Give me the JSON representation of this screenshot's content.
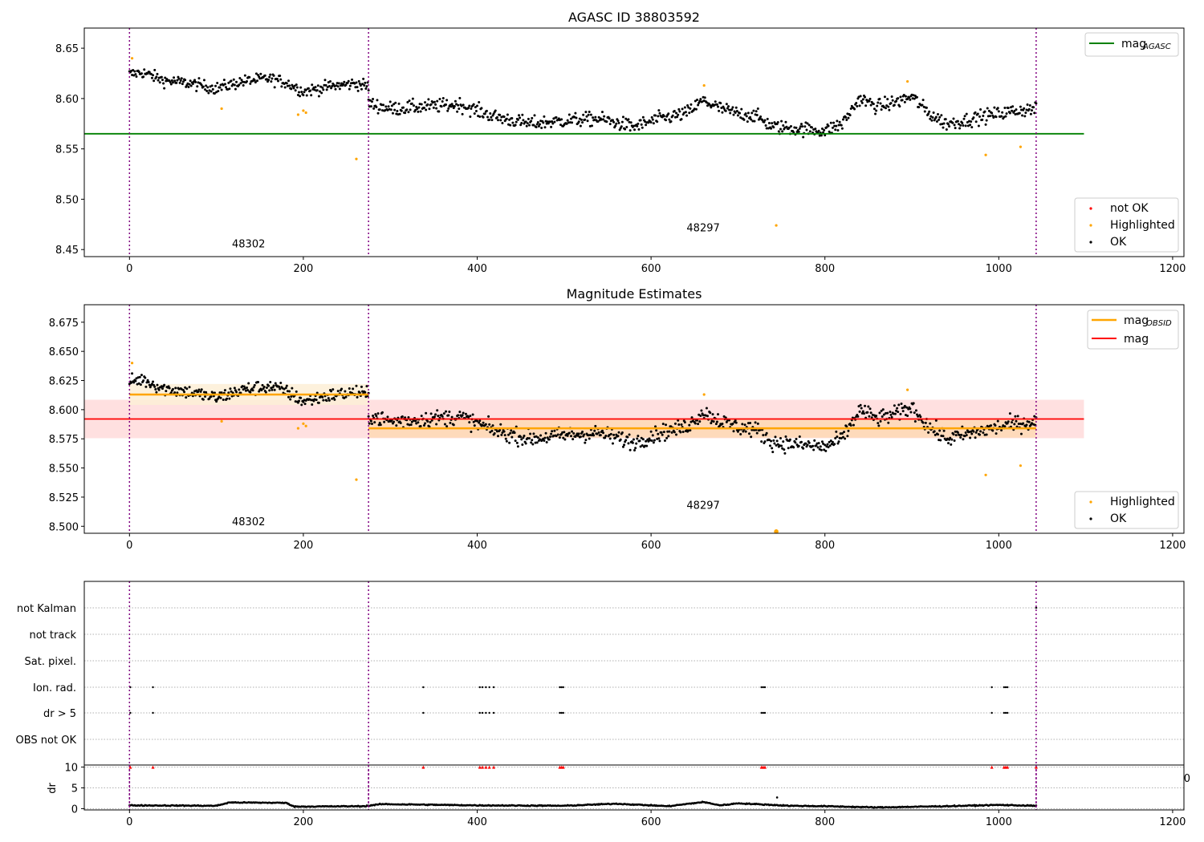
{
  "chart_data": [
    {
      "type": "scatter",
      "title": "AGASC ID 38803592",
      "xlim": [
        -52,
        1213
      ],
      "ylim": [
        8.443,
        8.67
      ],
      "xticks": [
        0,
        200,
        400,
        600,
        800,
        1000,
        1200
      ],
      "yticks": [
        8.45,
        8.5,
        8.55,
        8.6,
        8.65
      ],
      "obsid_boundaries": [
        0,
        275,
        1043
      ],
      "obsid_labels": [
        {
          "text": "48302",
          "x": 137,
          "y": 8.452
        },
        {
          "text": "48297",
          "x": 660,
          "y": 8.468
        }
      ],
      "hlines": [
        {
          "name": "mag_AGASC",
          "y": 8.565,
          "x": [
            -52,
            1098
          ],
          "color": "#008000"
        }
      ],
      "legend_lines": [
        {
          "text": "mag",
          "sub": "AGASC",
          "color": "#008000"
        }
      ],
      "legend_points": [
        {
          "text": "not OK",
          "color": "#ff0000"
        },
        {
          "text": "Highlighted",
          "color": "#ffa500"
        },
        {
          "text": "OK",
          "color": "#000000"
        }
      ],
      "highlighted_points": [
        [
          3,
          8.64
        ],
        [
          106,
          8.59
        ],
        [
          194,
          8.584
        ],
        [
          200,
          8.588
        ],
        [
          203,
          8.586
        ],
        [
          261,
          8.54
        ],
        [
          661,
          8.613
        ],
        [
          744,
          8.474
        ],
        [
          895,
          8.617
        ],
        [
          985,
          8.544
        ],
        [
          1025,
          8.552
        ]
      ],
      "ok_segments": [
        {
          "x": [
            0,
            275
          ],
          "y": [
            [
              0,
              8.624
            ],
            [
              15,
              8.626
            ],
            [
              40,
              8.618
            ],
            [
              70,
              8.615
            ],
            [
              100,
              8.61
            ],
            [
              130,
              8.617
            ],
            [
              160,
              8.62
            ],
            [
              180,
              8.616
            ],
            [
              200,
              8.607
            ],
            [
              230,
              8.612
            ],
            [
              260,
              8.615
            ],
            [
              275,
              8.612
            ]
          ],
          "noise": 0.006
        },
        {
          "x": [
            275,
            1043
          ],
          "y": [
            [
              275,
              8.595
            ],
            [
              300,
              8.59
            ],
            [
              340,
              8.592
            ],
            [
              380,
              8.594
            ],
            [
              420,
              8.582
            ],
            [
              460,
              8.575
            ],
            [
              500,
              8.578
            ],
            [
              540,
              8.58
            ],
            [
              580,
              8.572
            ],
            [
              610,
              8.58
            ],
            [
              640,
              8.585
            ],
            [
              660,
              8.598
            ],
            [
              680,
              8.59
            ],
            [
              700,
              8.585
            ],
            [
              720,
              8.583
            ],
            [
              740,
              8.572
            ],
            [
              770,
              8.57
            ],
            [
              800,
              8.568
            ],
            [
              820,
              8.575
            ],
            [
              840,
              8.6
            ],
            [
              860,
              8.592
            ],
            [
              880,
              8.596
            ],
            [
              900,
              8.602
            ],
            [
              920,
              8.585
            ],
            [
              940,
              8.575
            ],
            [
              960,
              8.578
            ],
            [
              980,
              8.582
            ],
            [
              1000,
              8.585
            ],
            [
              1020,
              8.588
            ],
            [
              1043,
              8.59
            ]
          ],
          "noise": 0.007
        }
      ]
    },
    {
      "type": "scatter",
      "title": "Magnitude Estimates",
      "xlim": [
        -52,
        1213
      ],
      "ylim": [
        8.494,
        8.69
      ],
      "xticks": [
        0,
        200,
        400,
        600,
        800,
        1000,
        1200
      ],
      "yticks": [
        8.5,
        8.525,
        8.55,
        8.575,
        8.6,
        8.625,
        8.65,
        8.675
      ],
      "obsid_boundaries": [
        0,
        275,
        1043
      ],
      "obsid_labels": [
        {
          "text": "48302",
          "x": 137,
          "y": 8.501
        },
        {
          "text": "48297",
          "x": 660,
          "y": 8.515
        }
      ],
      "bands": [
        {
          "name": "mag",
          "x": [
            -52,
            1098
          ],
          "y_center": 8.592,
          "y_err": 0.0165,
          "color": "#ff0000",
          "fill": "#ffdada"
        },
        {
          "name": "mag_OBSID_48302",
          "x": [
            0,
            275
          ],
          "y_center": 8.613,
          "y_err": 0.009,
          "color": "#ffa500",
          "fill": "#fdefd6"
        },
        {
          "name": "mag_OBSID_48297",
          "x": [
            275,
            1043
          ],
          "y_center": 8.584,
          "y_err": 0.008,
          "color": "#ffa500",
          "fill": "#fed8b4"
        }
      ],
      "legend_lines": [
        {
          "text": "mag",
          "sub": "OBSID",
          "color": "#ffa500"
        },
        {
          "text": "mag",
          "sub": "",
          "color": "#ff0000"
        }
      ],
      "legend_points": [
        {
          "text": "Highlighted",
          "color": "#ffa500"
        },
        {
          "text": "OK",
          "color": "#000000"
        }
      ],
      "highlighted_points": [
        [
          3,
          8.64
        ],
        [
          106,
          8.59
        ],
        [
          194,
          8.584
        ],
        [
          200,
          8.588
        ],
        [
          203,
          8.586
        ],
        [
          261,
          8.54
        ],
        [
          661,
          8.613
        ],
        [
          895,
          8.617
        ],
        [
          985,
          8.544
        ],
        [
          1025,
          8.552
        ]
      ],
      "clipped_points": [
        [
          744,
          8.4955
        ]
      ],
      "ok_segments": [
        {
          "x": [
            0,
            275
          ],
          "y": [
            [
              0,
              8.624
            ],
            [
              15,
              8.626
            ],
            [
              40,
              8.618
            ],
            [
              70,
              8.615
            ],
            [
              100,
              8.61
            ],
            [
              130,
              8.617
            ],
            [
              160,
              8.62
            ],
            [
              180,
              8.616
            ],
            [
              200,
              8.607
            ],
            [
              230,
              8.612
            ],
            [
              260,
              8.615
            ],
            [
              275,
              8.612
            ]
          ],
          "noise": 0.006
        },
        {
          "x": [
            275,
            1043
          ],
          "y": [
            [
              275,
              8.595
            ],
            [
              300,
              8.59
            ],
            [
              340,
              8.592
            ],
            [
              380,
              8.594
            ],
            [
              420,
              8.582
            ],
            [
              460,
              8.575
            ],
            [
              500,
              8.578
            ],
            [
              540,
              8.58
            ],
            [
              580,
              8.572
            ],
            [
              610,
              8.58
            ],
            [
              640,
              8.585
            ],
            [
              660,
              8.598
            ],
            [
              680,
              8.59
            ],
            [
              700,
              8.585
            ],
            [
              720,
              8.583
            ],
            [
              740,
              8.572
            ],
            [
              770,
              8.57
            ],
            [
              800,
              8.568
            ],
            [
              820,
              8.575
            ],
            [
              840,
              8.6
            ],
            [
              860,
              8.592
            ],
            [
              880,
              8.596
            ],
            [
              900,
              8.602
            ],
            [
              920,
              8.585
            ],
            [
              940,
              8.575
            ],
            [
              960,
              8.578
            ],
            [
              980,
              8.582
            ],
            [
              1000,
              8.585
            ],
            [
              1020,
              8.588
            ],
            [
              1043,
              8.59
            ]
          ],
          "noise": 0.007
        }
      ]
    },
    {
      "type": "scatter",
      "title": "",
      "xlim": [
        -52,
        1213
      ],
      "flag_rows": [
        "not Kalman",
        "not track",
        "Sat. pixel.",
        "Ion. rad.",
        "dr > 5",
        "OBS not OK"
      ],
      "obsid_boundaries": [
        0,
        275,
        1043
      ],
      "flag_points": {
        "not Kalman": [
          1043
        ],
        "not track": [],
        "Sat. pixel.": [],
        "Ion. rad.": [
          1,
          27,
          338,
          403,
          406,
          410,
          414,
          419,
          495,
          497,
          499,
          727,
          729,
          731,
          992,
          1006,
          1008,
          1010
        ],
        "dr > 5": [
          1,
          27,
          338,
          403,
          406,
          410,
          414,
          419,
          495,
          497,
          499,
          727,
          729,
          731,
          992,
          1006,
          1008,
          1010
        ],
        "OBS not OK": []
      }
    },
    {
      "type": "scatter",
      "title": "",
      "xlabel": "",
      "ylabel": "dr",
      "xlim": [
        -52,
        1213
      ],
      "ylim": [
        -0.3,
        10.5
      ],
      "xticks": [
        0,
        200,
        400,
        600,
        800,
        1000,
        1200
      ],
      "yticks": [
        0,
        5,
        10
      ],
      "right_tick_label": "0",
      "obsid_boundaries": [
        0,
        275,
        1043
      ],
      "marker_color": "#ff0000",
      "flag_x": [
        1,
        27,
        338,
        403,
        406,
        410,
        414,
        419,
        495,
        497,
        499,
        727,
        729,
        731,
        992,
        1006,
        1008,
        1010,
        1043
      ],
      "flag_y": 10,
      "outlier_points": [
        [
          745,
          2.7
        ]
      ],
      "dr_profile": [
        [
          0,
          0.8
        ],
        [
          100,
          0.7
        ],
        [
          115,
          1.5
        ],
        [
          180,
          1.4
        ],
        [
          190,
          0.5
        ],
        [
          270,
          0.6
        ],
        [
          290,
          1.1
        ],
        [
          400,
          0.8
        ],
        [
          500,
          0.7
        ],
        [
          560,
          1.2
        ],
        [
          620,
          0.6
        ],
        [
          660,
          1.6
        ],
        [
          680,
          0.8
        ],
        [
          700,
          1.3
        ],
        [
          760,
          0.7
        ],
        [
          800,
          0.6
        ],
        [
          860,
          0.3
        ],
        [
          940,
          0.6
        ],
        [
          1000,
          0.9
        ],
        [
          1043,
          0.7
        ]
      ]
    }
  ]
}
